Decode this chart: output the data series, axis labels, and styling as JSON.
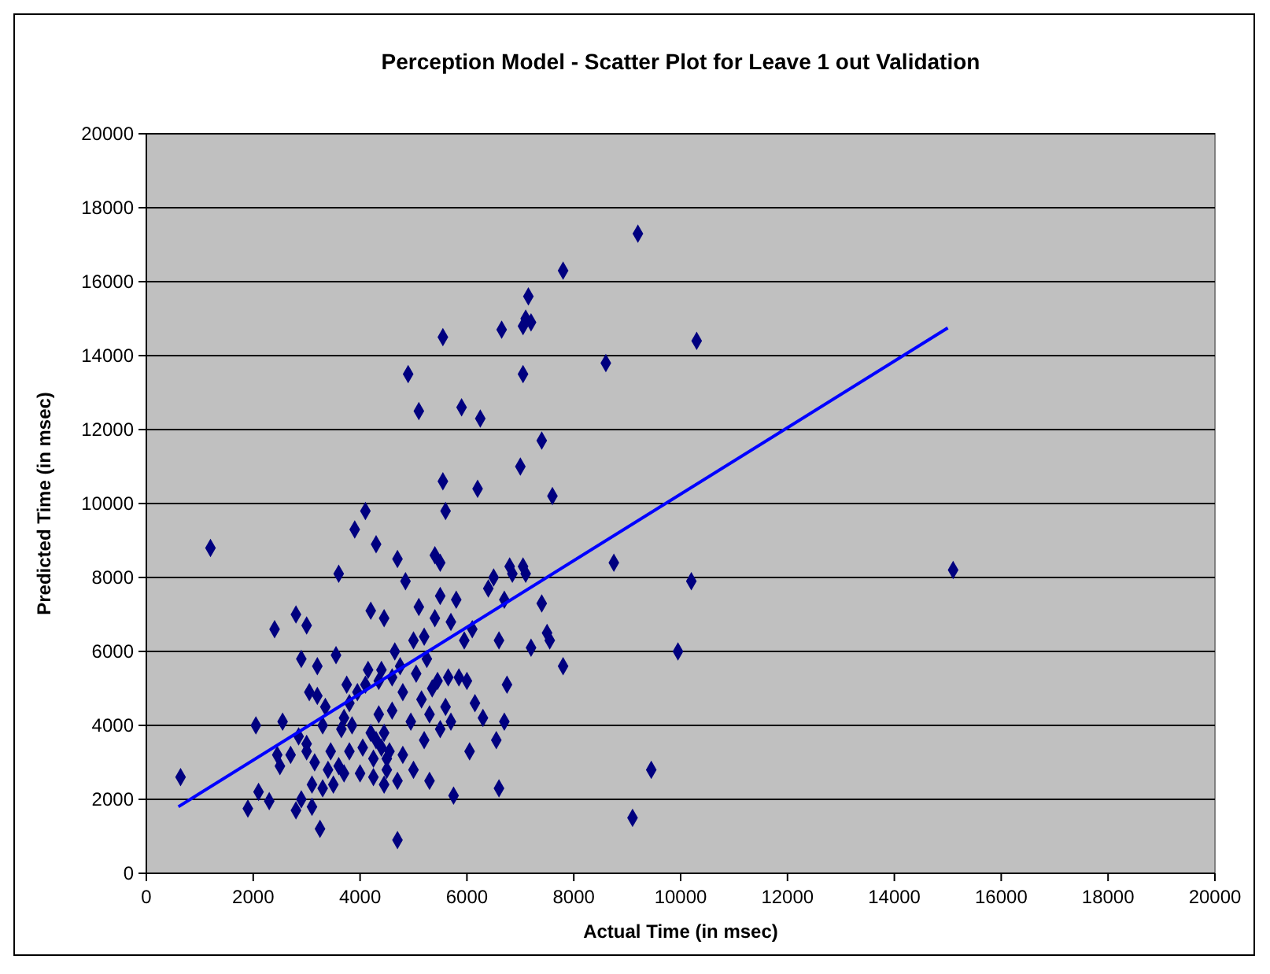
{
  "chart_data": {
    "type": "scatter",
    "title": "Perception Model - Scatter Plot for Leave 1 out Validation",
    "xlabel": "Actual Time (in msec)",
    "ylabel": "Predicted Time (in msec)",
    "xlim": [
      0,
      20000
    ],
    "xticks": [
      0,
      2000,
      4000,
      6000,
      8000,
      10000,
      12000,
      14000,
      16000,
      18000,
      20000
    ],
    "ylim": [
      0,
      20000
    ],
    "yticks": [
      0,
      2000,
      4000,
      6000,
      8000,
      10000,
      12000,
      14000,
      16000,
      18000,
      20000
    ],
    "grid": "y",
    "series": [
      {
        "color": "#000080",
        "marker": "diamond",
        "x": [
          640,
          1200,
          1900,
          2050,
          2100,
          2300,
          2400,
          2450,
          2500,
          2550,
          2700,
          2800,
          2800,
          2850,
          2900,
          2900,
          3000,
          3000,
          3000,
          3050,
          3100,
          3100,
          3150,
          3200,
          3200,
          3250,
          3300,
          3300,
          3350,
          3400,
          3450,
          3500,
          3550,
          3600,
          3600,
          3650,
          3700,
          3700,
          3750,
          3800,
          3800,
          3850,
          3900,
          3950,
          4000,
          4050,
          4100,
          4100,
          4150,
          4200,
          4200,
          4250,
          4250,
          4300,
          4300,
          4350,
          4350,
          4400,
          4400,
          4450,
          4450,
          4450,
          4500,
          4500,
          4550,
          4600,
          4600,
          4650,
          4700,
          4700,
          4700,
          4750,
          4800,
          4800,
          4850,
          4900,
          4950,
          5000,
          5000,
          5050,
          5100,
          5100,
          5150,
          5200,
          5200,
          5250,
          5300,
          5300,
          5350,
          5400,
          5400,
          5450,
          5500,
          5500,
          5500,
          5550,
          5550,
          5600,
          5600,
          5650,
          5700,
          5700,
          5750,
          5800,
          5850,
          5900,
          5950,
          6000,
          6050,
          6100,
          6150,
          6200,
          6250,
          6300,
          6400,
          6500,
          6550,
          6600,
          6600,
          6650,
          6700,
          6700,
          6750,
          6800,
          6850,
          7000,
          7050,
          7050,
          7050,
          7100,
          7100,
          7150,
          7200,
          7200,
          7400,
          7400,
          7500,
          7550,
          7600,
          7800,
          7800,
          8600,
          8750,
          9100,
          9200,
          9450,
          9950,
          10200,
          10300,
          15100
        ],
        "values": [
          2600,
          8800,
          1750,
          4000,
          2200,
          1950,
          6600,
          3200,
          2900,
          4100,
          3200,
          1700,
          7000,
          3700,
          5800,
          2000,
          3300,
          3500,
          6700,
          4900,
          2400,
          1800,
          3000,
          4800,
          5600,
          1200,
          4000,
          2300,
          4500,
          2800,
          3300,
          2400,
          5900,
          2900,
          8100,
          3900,
          4200,
          2700,
          5100,
          3300,
          4600,
          4000,
          9300,
          4900,
          2700,
          3400,
          5100,
          9800,
          5500,
          3800,
          7100,
          2600,
          3100,
          8900,
          3600,
          4300,
          5200,
          3400,
          5500,
          2400,
          3800,
          6900,
          3100,
          2800,
          3300,
          4400,
          5300,
          6000,
          900,
          2500,
          8500,
          5600,
          4900,
          3200,
          7900,
          13500,
          4100,
          6300,
          2800,
          5400,
          12500,
          7200,
          4700,
          6400,
          3600,
          5800,
          4300,
          2500,
          5000,
          6900,
          8600,
          5200,
          7500,
          3900,
          8400,
          10600,
          14500,
          4500,
          9800,
          5300,
          6800,
          4100,
          2100,
          7400,
          5300,
          12600,
          6300,
          5200,
          3300,
          6600,
          4600,
          10400,
          12300,
          4200,
          7700,
          8000,
          3600,
          2300,
          6300,
          14700,
          4100,
          7400,
          5100,
          8300,
          8100,
          11000,
          13500,
          14800,
          8300,
          15000,
          8100,
          15600,
          14900,
          6100,
          11700,
          7300,
          6500,
          6300,
          10200,
          5600,
          16300,
          13800,
          8400,
          1500,
          17300,
          2800,
          6000,
          7900,
          14400,
          8200
        ]
      },
      {
        "type": "line",
        "color": "#0000ff",
        "marker": "none",
        "line_style": "solid",
        "x": [
          600,
          15000
        ],
        "values": [
          1800,
          14750
        ]
      }
    ]
  }
}
